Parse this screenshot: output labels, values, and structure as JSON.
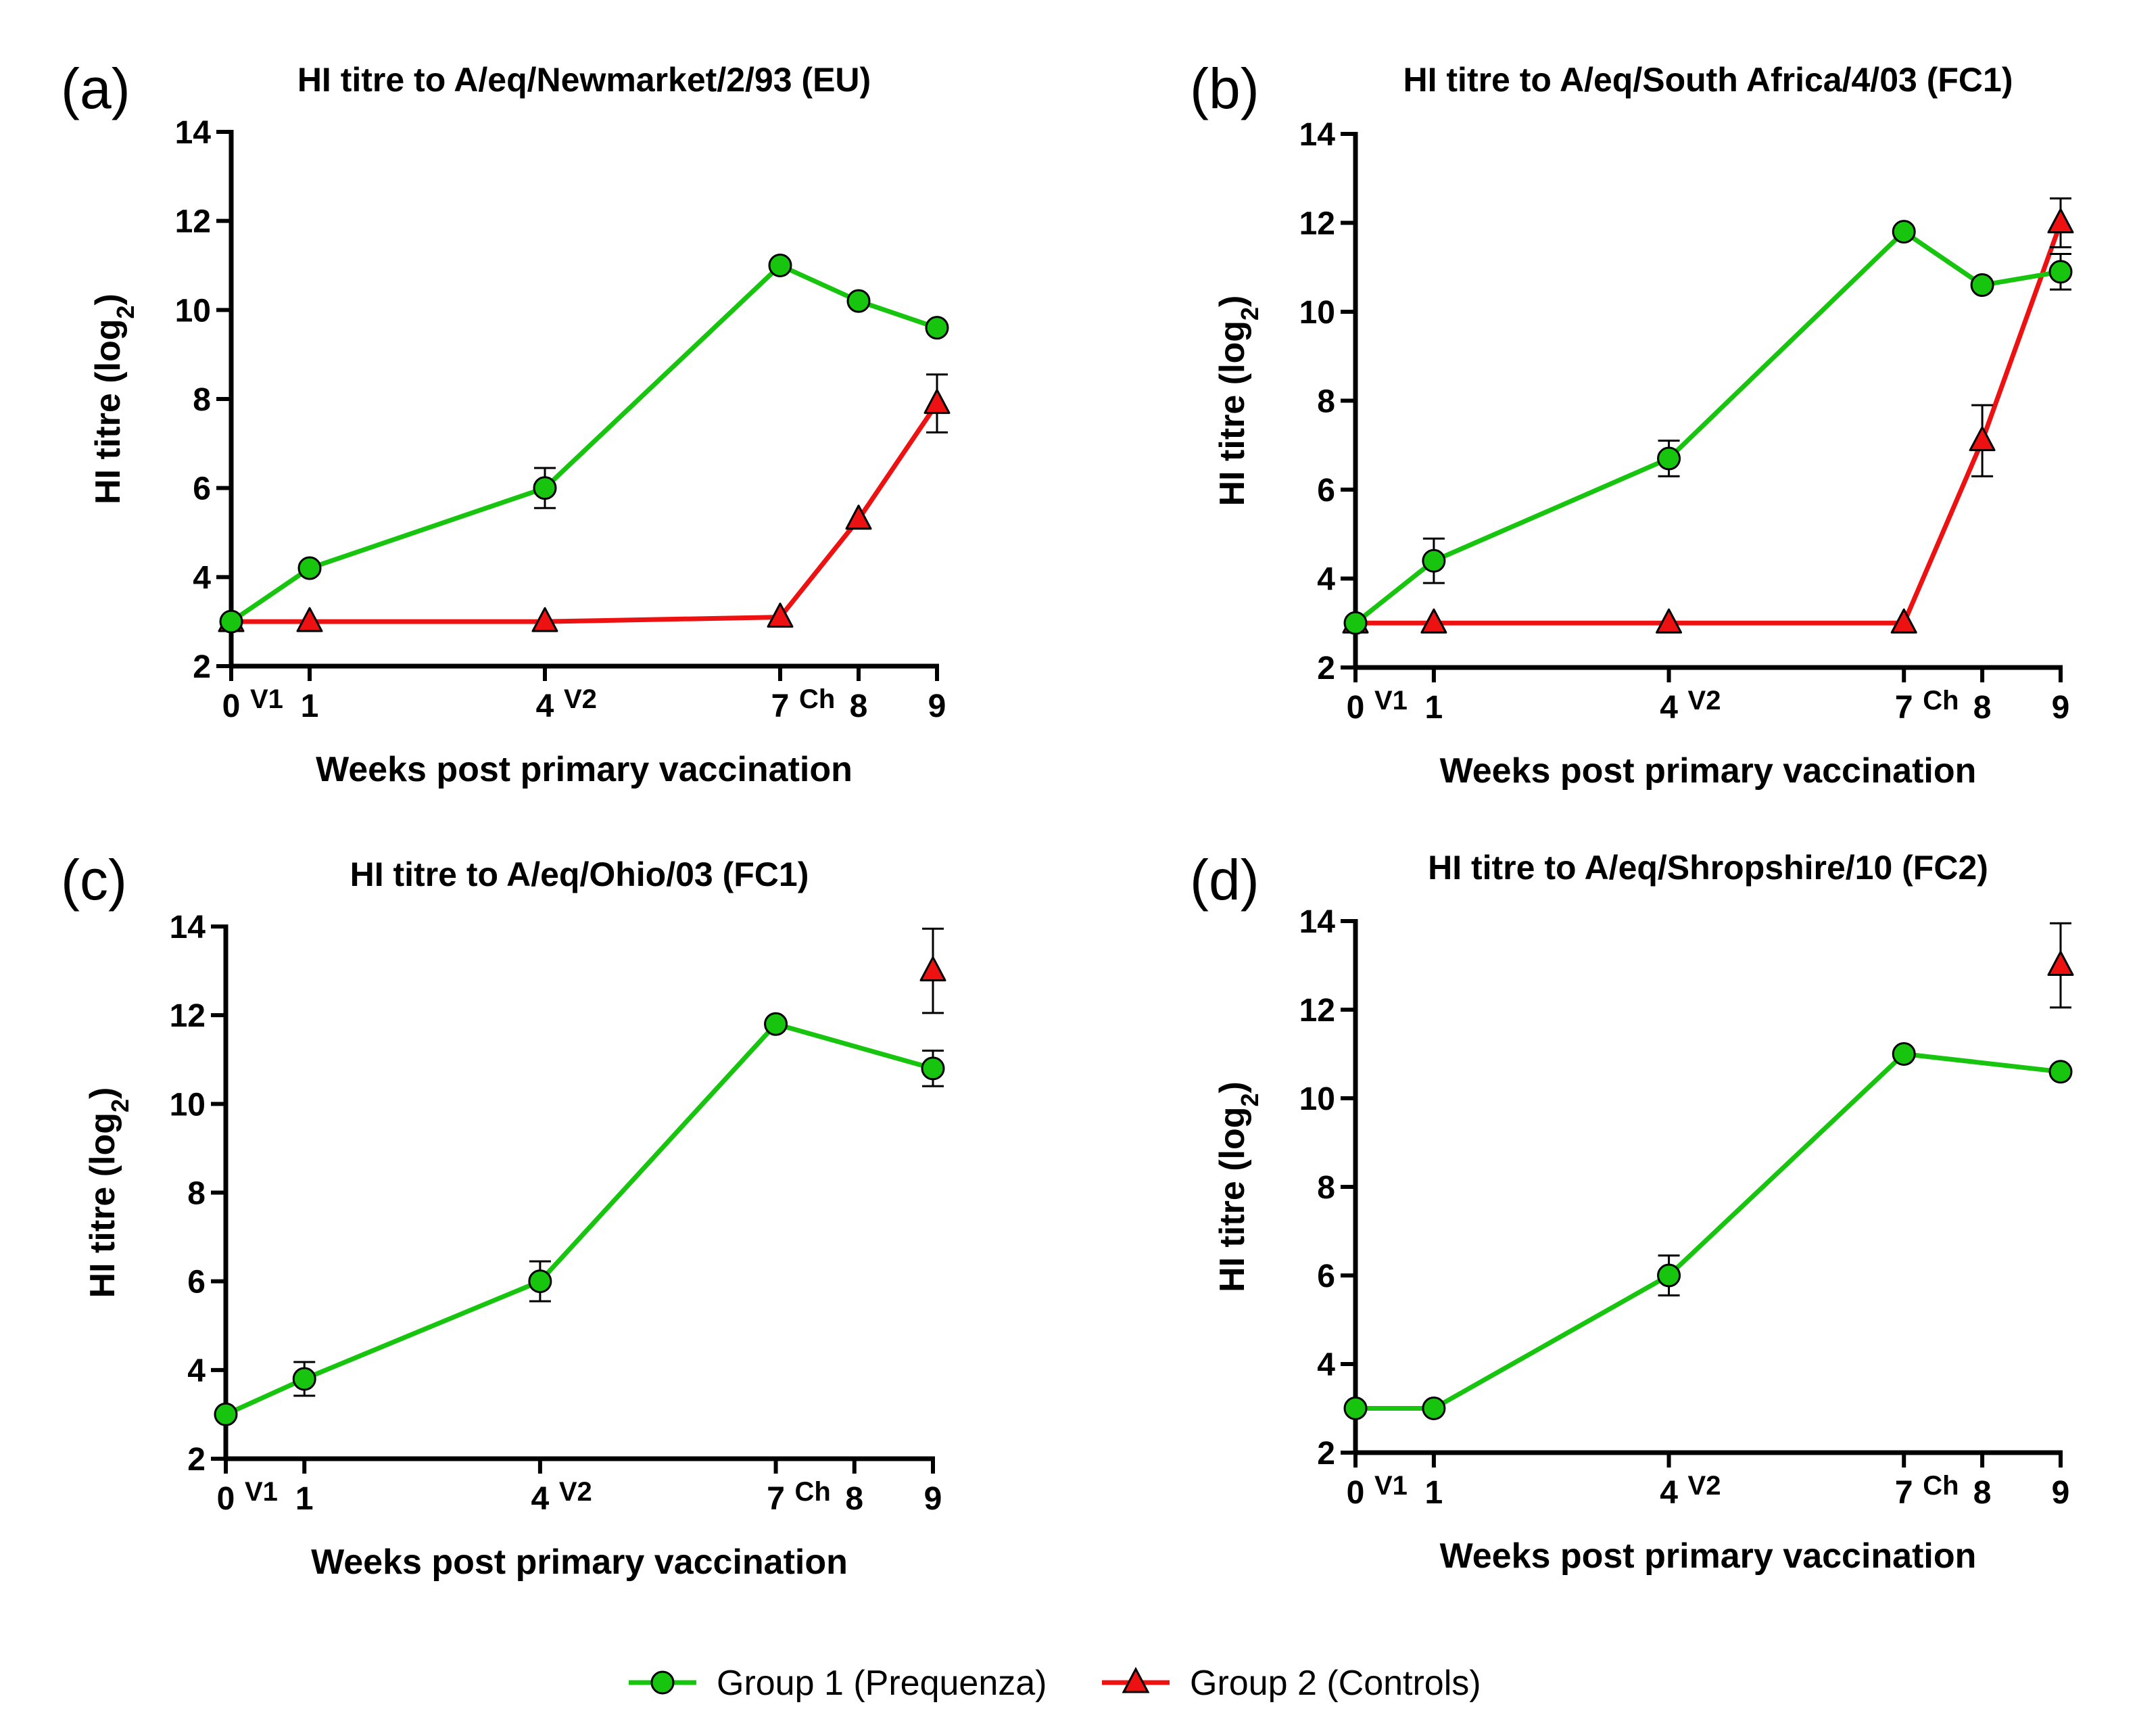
{
  "legend": {
    "items": [
      {
        "label": "Group 1 (Prequenza)",
        "color": "#17c40e",
        "marker": "circle"
      },
      {
        "label": "Group 2 (Controls)",
        "color": "#ee1111",
        "marker": "triangle"
      }
    ]
  },
  "chart_data": [
    {
      "type": "line",
      "panel": "(a)",
      "title": "HI titre to A/eq/Newmarket/2/93 (EU)",
      "xlabel": "Weeks post primary vaccination",
      "ylabel_main": "HI titre (log",
      "ylabel_sub": "2",
      "ylabel_end": ")",
      "xlim": [
        0,
        9
      ],
      "ylim": [
        2,
        14
      ],
      "xticks": [
        0,
        1,
        4,
        7,
        8,
        9
      ],
      "xtick_labels": [
        "0",
        "1",
        "4",
        "7",
        "8",
        "9"
      ],
      "yticks": [
        2,
        4,
        6,
        8,
        10,
        12,
        14
      ],
      "ytick_labels": [
        "2",
        "4",
        "6",
        "8",
        "10",
        "12",
        "14"
      ],
      "annotations": [
        {
          "x": 0,
          "text": "V1"
        },
        {
          "x": 4,
          "text": "V2"
        },
        {
          "x": 7,
          "text": "Ch"
        }
      ],
      "series": [
        {
          "name": "Group 1 (Prequenza)",
          "x": [
            0,
            1,
            4,
            7,
            8,
            9
          ],
          "values": [
            3.0,
            4.2,
            6.0,
            11.0,
            10.2,
            9.6
          ],
          "err": [
            0,
            0,
            0.45,
            0,
            0,
            0
          ],
          "connect": true
        },
        {
          "name": "Group 2 (Controls)",
          "x": [
            0,
            1,
            4,
            7,
            8,
            9
          ],
          "values": [
            3.0,
            3.0,
            3.0,
            3.1,
            5.3,
            7.9
          ],
          "err": [
            0,
            0,
            0,
            0,
            0,
            0.65
          ],
          "connect": true
        }
      ]
    },
    {
      "type": "line",
      "panel": "(b)",
      "title": "HI titre to A/eq/South Africa/4/03 (FC1)",
      "xlabel": "Weeks post primary vaccination",
      "ylabel_main": "HI titre (log",
      "ylabel_sub": "2",
      "ylabel_end": ")",
      "xlim": [
        0,
        9
      ],
      "ylim": [
        2,
        14
      ],
      "xticks": [
        0,
        1,
        4,
        7,
        8,
        9
      ],
      "xtick_labels": [
        "0",
        "1",
        "4",
        "7",
        "8",
        "9"
      ],
      "yticks": [
        2,
        4,
        6,
        8,
        10,
        12,
        14
      ],
      "ytick_labels": [
        "2",
        "4",
        "6",
        "8",
        "10",
        "12",
        "14"
      ],
      "annotations": [
        {
          "x": 0,
          "text": "V1"
        },
        {
          "x": 4,
          "text": "V2"
        },
        {
          "x": 7,
          "text": "Ch"
        }
      ],
      "series": [
        {
          "name": "Group 1 (Prequenza)",
          "x": [
            0,
            1,
            4,
            7,
            8,
            9
          ],
          "values": [
            3.0,
            4.4,
            6.7,
            11.8,
            10.6,
            10.9
          ],
          "err": [
            0,
            0.5,
            0.4,
            0,
            0,
            0.4
          ],
          "connect": true
        },
        {
          "name": "Group 2 (Controls)",
          "x": [
            0,
            1,
            4,
            7,
            8,
            9
          ],
          "values": [
            3.0,
            3.0,
            3.0,
            3.0,
            7.1,
            12.0
          ],
          "err": [
            0,
            0,
            0,
            0,
            0.8,
            0.55
          ],
          "connect": true
        }
      ]
    },
    {
      "type": "line",
      "panel": "(c)",
      "title": "HI titre to A/eq/Ohio/03 (FC1)",
      "xlabel": "Weeks post primary vaccination",
      "ylabel_main": "HI titre (log",
      "ylabel_sub": "2",
      "ylabel_end": ")",
      "xlim": [
        0,
        9
      ],
      "ylim": [
        2,
        14
      ],
      "xticks": [
        0,
        1,
        4,
        7,
        8,
        9
      ],
      "xtick_labels": [
        "0",
        "1",
        "4",
        "7",
        "8",
        "9"
      ],
      "yticks": [
        2,
        4,
        6,
        8,
        10,
        12,
        14
      ],
      "ytick_labels": [
        "2",
        "4",
        "6",
        "8",
        "10",
        "12",
        "14"
      ],
      "annotations": [
        {
          "x": 0,
          "text": "V1"
        },
        {
          "x": 4,
          "text": "V2"
        },
        {
          "x": 7,
          "text": "Ch"
        }
      ],
      "series": [
        {
          "name": "Group 1 (Prequenza)",
          "x": [
            0,
            1,
            4,
            7,
            9
          ],
          "values": [
            3.0,
            3.8,
            6.0,
            11.8,
            10.8
          ],
          "err": [
            0,
            0.38,
            0.45,
            0,
            0.4
          ],
          "connect": true
        },
        {
          "name": "Group 2 (Controls)",
          "x": [
            9
          ],
          "values": [
            13.0
          ],
          "err": [
            0.95
          ],
          "connect": false
        }
      ]
    },
    {
      "type": "line",
      "panel": "(d)",
      "title": "HI titre to A/eq/Shropshire/10 (FC2)",
      "xlabel": "Weeks post primary vaccination",
      "ylabel_main": "HI titre (log",
      "ylabel_sub": "2",
      "ylabel_end": ")",
      "xlim": [
        0,
        9
      ],
      "ylim": [
        2,
        14
      ],
      "xticks": [
        0,
        1,
        4,
        7,
        8,
        9
      ],
      "xtick_labels": [
        "0",
        "1",
        "4",
        "7",
        "8",
        "9"
      ],
      "yticks": [
        2,
        4,
        6,
        8,
        10,
        12,
        14
      ],
      "ytick_labels": [
        "2",
        "4",
        "6",
        "8",
        "10",
        "12",
        "14"
      ],
      "annotations": [
        {
          "x": 0,
          "text": "V1"
        },
        {
          "x": 4,
          "text": "V2"
        },
        {
          "x": 7,
          "text": "Ch"
        }
      ],
      "series": [
        {
          "name": "Group 1 (Prequenza)",
          "x": [
            0,
            1,
            4,
            7,
            9
          ],
          "values": [
            3.0,
            3.0,
            6.0,
            11.0,
            10.6
          ],
          "err": [
            0,
            0,
            0.45,
            0,
            0
          ],
          "connect": true
        },
        {
          "name": "Group 2 (Controls)",
          "x": [
            9
          ],
          "values": [
            13.0
          ],
          "err": [
            0.95
          ],
          "connect": false
        }
      ]
    }
  ]
}
